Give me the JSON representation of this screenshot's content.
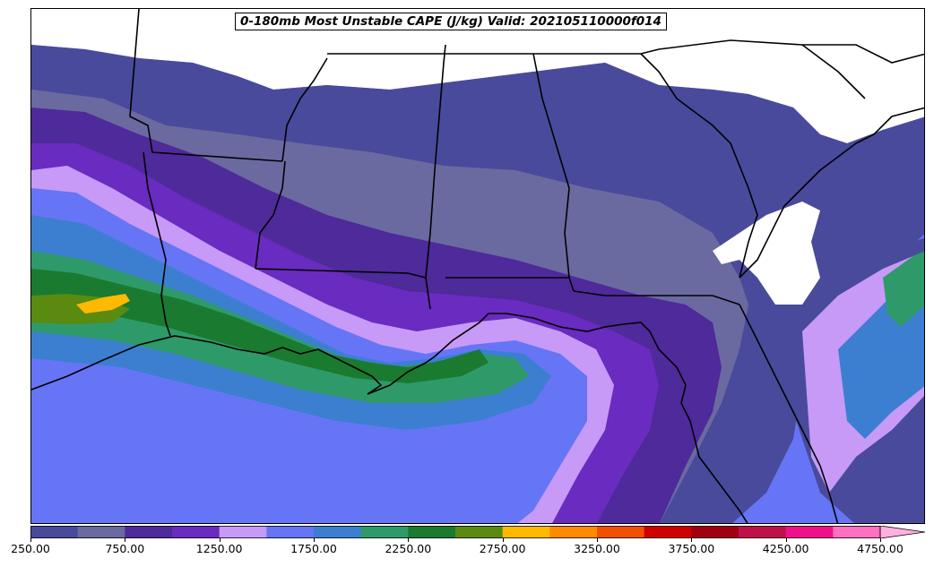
{
  "title": "0-180mb Most Unstable CAPE (J/kg) Valid: 202105110000f014",
  "colorbar": {
    "colors": [
      "#4a4a9c",
      "#6a6aa0",
      "#4f2a9a",
      "#6a2bc0",
      "#c79af8",
      "#6675f5",
      "#3c7fd0",
      "#2e9a6a",
      "#1a7a30",
      "#5a8a10",
      "#ffba00",
      "#ff8a00",
      "#f05000",
      "#d00000",
      "#a00010",
      "#c0104a",
      "#f0108a",
      "#ff70c0",
      "#ffb0e0"
    ],
    "tick_labels": [
      "250.00",
      "750.00",
      "1250.00",
      "1750.00",
      "2250.00",
      "2750.00",
      "3250.00",
      "3750.00",
      "4250.00",
      "4750.00"
    ]
  },
  "map": {
    "land_color": "#ffffff",
    "border_color": "#000000"
  }
}
